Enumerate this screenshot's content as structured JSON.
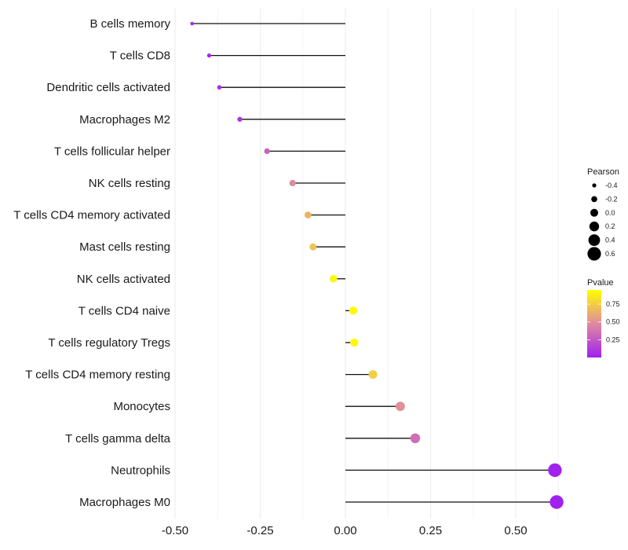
{
  "chart_data": {
    "type": "lollipop",
    "title": "",
    "xlabel": "",
    "ylabel": "",
    "xlim": [
      -0.5,
      0.65
    ],
    "x_ticks": [
      -0.5,
      -0.25,
      0.0,
      0.25,
      0.5
    ],
    "x_tick_labels": [
      "-0.50",
      "-0.25",
      "0.00",
      "0.25",
      "0.50"
    ],
    "grid": true,
    "categories": [
      "B cells memory",
      "T cells CD8",
      "Dendritic cells activated",
      "Macrophages M2",
      "T cells follicular helper",
      "NK cells resting",
      "T cells CD4 memory activated",
      "Mast cells resting",
      "NK cells activated",
      "T cells CD4 naive",
      "T cells regulatory  Tregs ",
      "T cells CD4 memory resting",
      "Monocytes",
      "T cells gamma delta",
      "Neutrophils",
      "Macrophages M0"
    ],
    "pearson": [
      -0.45,
      -0.4,
      -0.37,
      -0.31,
      -0.23,
      -0.155,
      -0.11,
      -0.095,
      -0.035,
      0.023,
      0.026,
      0.081,
      0.161,
      0.205,
      0.615,
      0.62
    ],
    "pvalue": [
      0.03,
      0.04,
      0.06,
      0.1,
      0.3,
      0.48,
      0.65,
      0.7,
      0.92,
      0.93,
      0.92,
      0.75,
      0.5,
      0.35,
      0.01,
      0.01
    ],
    "legend": {
      "size_title": "Pearson",
      "size_values": [
        -0.4,
        -0.2,
        0.0,
        0.2,
        0.4,
        0.6
      ],
      "size_labels": [
        "-0.4",
        "-0.2",
        "0.0",
        "0.2",
        "0.4",
        "0.6"
      ],
      "color_title": "Pvalue",
      "color_ticks": [
        0.25,
        0.5,
        0.75
      ],
      "color_tick_labels": [
        "0.25",
        "0.50",
        "0.75"
      ],
      "color_range": [
        0.0,
        0.95
      ],
      "color_low": "#a020f0",
      "color_mid": "#e08aa0",
      "color_high": "#ffff00",
      "placement": "right"
    }
  }
}
